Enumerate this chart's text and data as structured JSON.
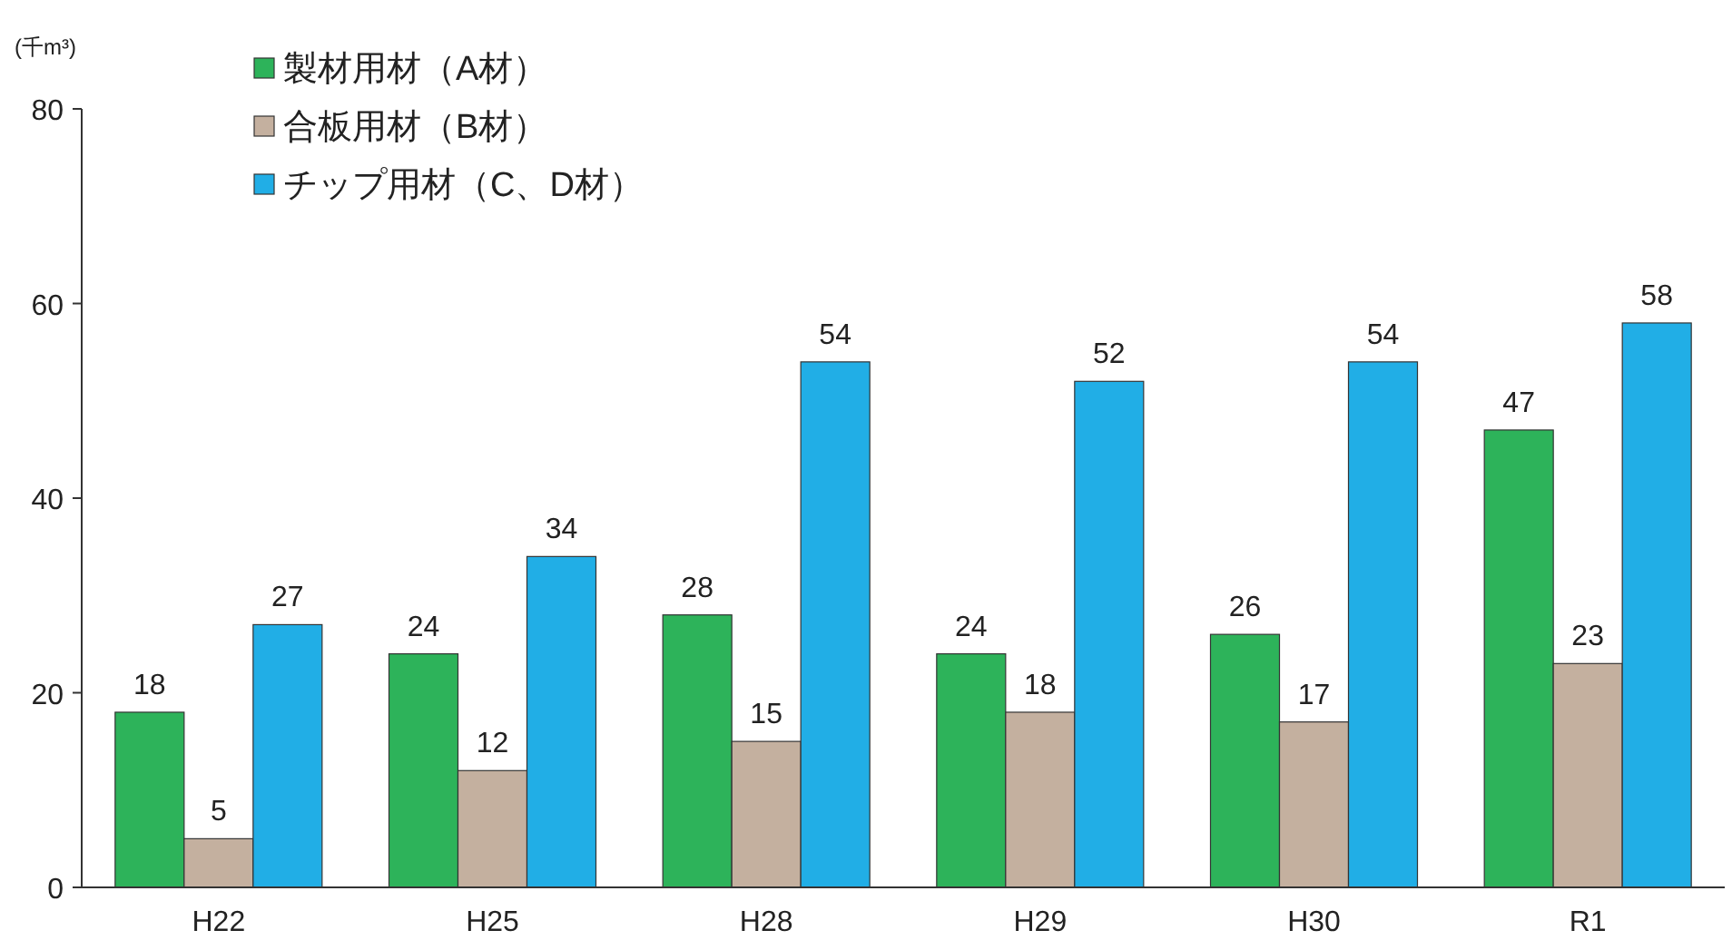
{
  "chart_data": {
    "type": "bar",
    "ylabel": "(千m³)",
    "categories": [
      "H22",
      "H25",
      "H28",
      "H29",
      "H30",
      "R1"
    ],
    "series": [
      {
        "name": "製材用材（A材）",
        "color": "#2db35a",
        "values": [
          18,
          24,
          28,
          24,
          26,
          47
        ]
      },
      {
        "name": "合板用材（B材）",
        "color": "#c4b09f",
        "values": [
          5,
          12,
          15,
          18,
          17,
          23
        ]
      },
      {
        "name": "チップ用材（C、D材）",
        "color": "#21aee6",
        "values": [
          27,
          34,
          54,
          52,
          54,
          58
        ]
      }
    ],
    "ylim": [
      0,
      80
    ],
    "yticks": [
      0,
      20,
      40,
      60,
      80
    ],
    "data_labels": true,
    "legend": "top left",
    "grid": false
  }
}
